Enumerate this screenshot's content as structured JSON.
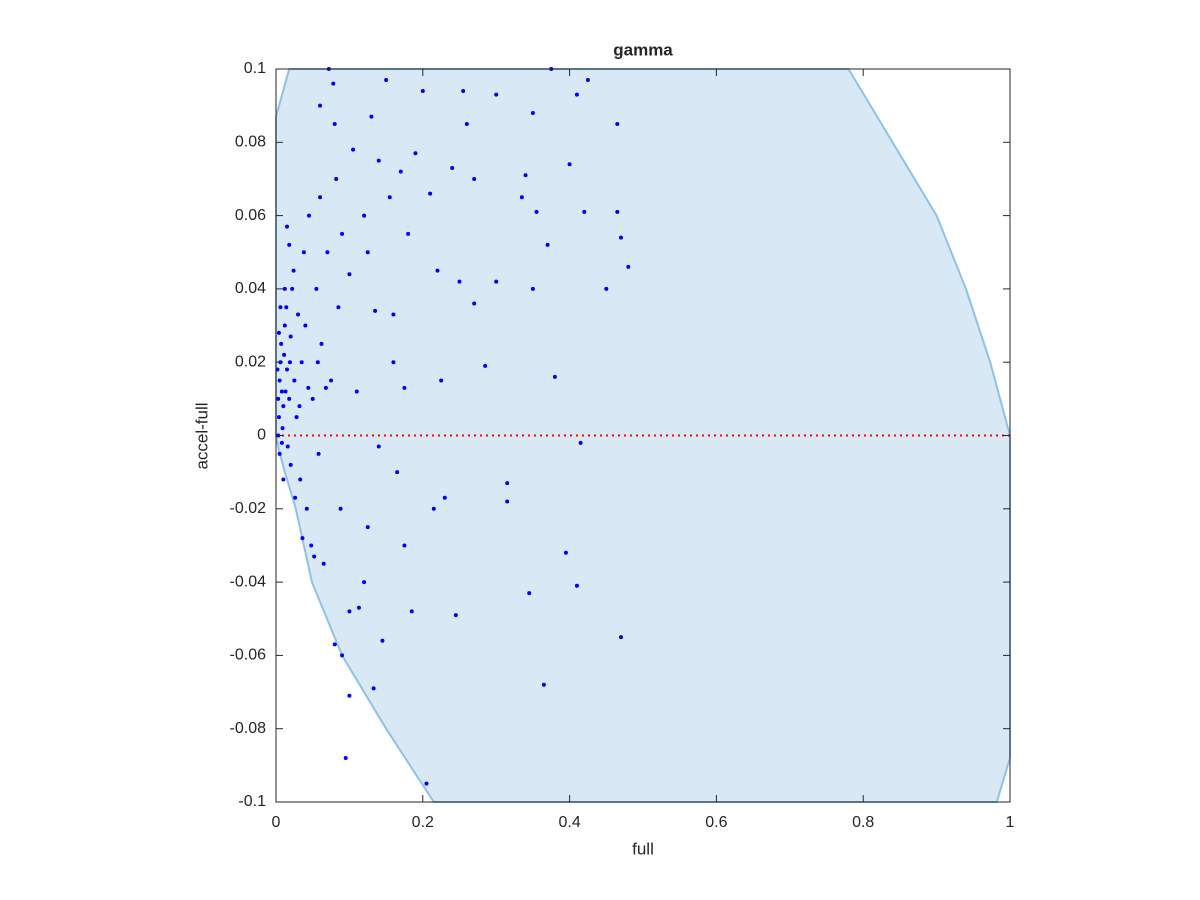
{
  "chart_data": {
    "type": "scatter",
    "title": "gamma",
    "xlabel": "full",
    "ylabel": "accel-full",
    "xlim": [
      0,
      1
    ],
    "ylim": [
      -0.1,
      0.1
    ],
    "xticks": [
      0,
      0.2,
      0.4,
      0.6,
      0.8,
      1
    ],
    "yticks": [
      -0.1,
      -0.08,
      -0.06,
      -0.04,
      -0.02,
      0,
      0.02,
      0.04,
      0.06,
      0.08,
      0.1
    ],
    "region": {
      "color": "#d9e8f5",
      "edge_color": "#8ec2e6",
      "x": [
        0,
        0.018,
        0.78,
        0.84,
        0.9,
        0.94,
        0.973,
        1,
        1,
        0.982,
        0.215,
        0.15,
        0.09,
        0.049,
        0.027,
        0.012,
        0.004,
        0
      ],
      "y": [
        0.087,
        0.1,
        0.1,
        0.08,
        0.06,
        0.04,
        0.02,
        0,
        -0.088,
        -0.1,
        -0.1,
        -0.08,
        -0.06,
        -0.04,
        -0.02,
        -0.01,
        -0.004,
        0
      ]
    },
    "hline": {
      "value": 0,
      "color": "#ff0000"
    },
    "series": [
      {
        "color": "#0000ff",
        "x": [
          0.003,
          0.005,
          0.004,
          0.006,
          0.008,
          0.002,
          0.007,
          0.01,
          0.012,
          0.009,
          0.011,
          0.015,
          0.014,
          0.018,
          0.02,
          0.016,
          0.022,
          0.025,
          0.02,
          0.028,
          0.03,
          0.024,
          0.018,
          0.015,
          0.035,
          0.033,
          0.038,
          0.04,
          0.042,
          0.045,
          0.05,
          0.048,
          0.055,
          0.058,
          0.06,
          0.062,
          0.065,
          0.07,
          0.072,
          0.075,
          0.078,
          0.08,
          0.082,
          0.085,
          0.088,
          0.09,
          0.095,
          0.1,
          0.1,
          0.105,
          0.11,
          0.113,
          0.12,
          0.125,
          0.13,
          0.133,
          0.135,
          0.14,
          0.145,
          0.15,
          0.155,
          0.16,
          0.165,
          0.17,
          0.175,
          0.18,
          0.185,
          0.19,
          0.2,
          0.205,
          0.21,
          0.215,
          0.22,
          0.225,
          0.23,
          0.24,
          0.245,
          0.25,
          0.255,
          0.26,
          0.27,
          0.27,
          0.285,
          0.3,
          0.3,
          0.315,
          0.315,
          0.335,
          0.34,
          0.345,
          0.35,
          0.35,
          0.355,
          0.365,
          0.37,
          0.375,
          0.38,
          0.395,
          0.4,
          0.41,
          0.41,
          0.415,
          0.42,
          0.425,
          0.45,
          0.465,
          0.465,
          0.47,
          0.47,
          0.48,
          0.005,
          0.01,
          0.004,
          0.006,
          0.013,
          0.003,
          0.008,
          0.012,
          0.019,
          0.026,
          0.032,
          0.036,
          0.044,
          0.052,
          0.057,
          0.068,
          0.09,
          0.1,
          0.12,
          0.14,
          0.16,
          0.175,
          0.125,
          0.08,
          0.06
        ],
        "values": [
          0.01,
          0.015,
          0.005,
          0.02,
          0.012,
          0.018,
          0.025,
          0.008,
          0.03,
          0.002,
          0.022,
          0.018,
          0.035,
          0.01,
          0.027,
          -0.003,
          0.04,
          0.015,
          -0.008,
          0.005,
          0.033,
          0.045,
          0.052,
          0.057,
          0.02,
          -0.012,
          0.05,
          0.03,
          -0.02,
          0.06,
          0.01,
          -0.03,
          0.04,
          -0.005,
          0.065,
          0.025,
          -0.035,
          0.05,
          0.1,
          0.015,
          0.096,
          -0.057,
          0.07,
          0.035,
          -0.02,
          0.055,
          -0.088,
          0.044,
          -0.071,
          0.078,
          0.012,
          -0.047,
          0.06,
          -0.025,
          0.087,
          -0.069,
          0.034,
          0.075,
          -0.056,
          0.097,
          0.065,
          0.033,
          -0.01,
          0.072,
          -0.03,
          0.055,
          -0.048,
          0.077,
          0.094,
          -0.095,
          0.066,
          -0.02,
          0.045,
          0.015,
          -0.017,
          0.073,
          -0.049,
          0.042,
          0.094,
          0.085,
          0.07,
          0.036,
          0.019,
          0.093,
          0.042,
          -0.013,
          -0.018,
          0.065,
          0.071,
          -0.043,
          0.088,
          0.04,
          0.061,
          -0.068,
          0.052,
          0.1,
          0.016,
          -0.032,
          0.074,
          0.093,
          -0.041,
          -0.002,
          0.061,
          0.097,
          0.04,
          0.085,
          0.061,
          -0.055,
          0.054,
          0.046,
          -0.005,
          -0.012,
          0.028,
          0.035,
          0.012,
          0,
          -0.002,
          0.04,
          0.02,
          -0.017,
          0.008,
          -0.028,
          0.013,
          -0.033,
          0.02,
          0.013,
          -0.06,
          -0.048,
          -0.04,
          -0.003,
          0.02,
          0.013,
          0.05,
          0.085,
          0.09
        ]
      }
    ]
  }
}
